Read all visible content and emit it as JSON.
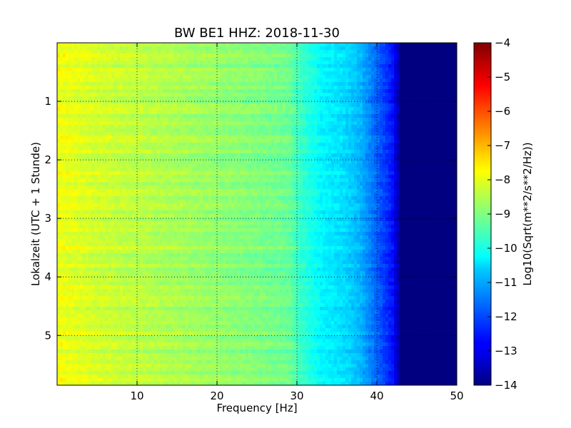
{
  "chart_data": {
    "type": "heatmap",
    "title": "BW BE1 HHZ: 2018-11-30",
    "xlabel": "Frequency [Hz]",
    "ylabel": "Lokalzeit (UTC + 1 Stunde)",
    "xlim": [
      0,
      50
    ],
    "ylim": [
      0,
      5.85
    ],
    "y_inverted": true,
    "x_ticks": [
      10,
      20,
      30,
      40,
      50
    ],
    "y_ticks": [
      1,
      2,
      3,
      4,
      5
    ],
    "grid": true,
    "colormap": "jet",
    "colorbar": {
      "label": "Log10(Sqrt(m**2/s**2/Hz))",
      "range": [
        -14,
        -4
      ],
      "ticks": [
        -14,
        -13,
        -12,
        -11,
        -10,
        -9,
        -8,
        -7,
        -6,
        -5,
        -4
      ]
    },
    "spectrum_profile": {
      "frequency_hz": [
        0,
        2,
        5,
        10,
        15,
        20,
        25,
        29,
        30,
        33,
        36,
        38,
        40,
        42,
        43,
        45,
        50
      ],
      "log10_amplitude": [
        -7.9,
        -8.0,
        -8.2,
        -8.4,
        -8.6,
        -8.8,
        -9.0,
        -9.2,
        -9.6,
        -10.3,
        -10.6,
        -11.0,
        -11.8,
        -12.6,
        -14.0,
        -14.0,
        -14.0
      ]
    }
  }
}
